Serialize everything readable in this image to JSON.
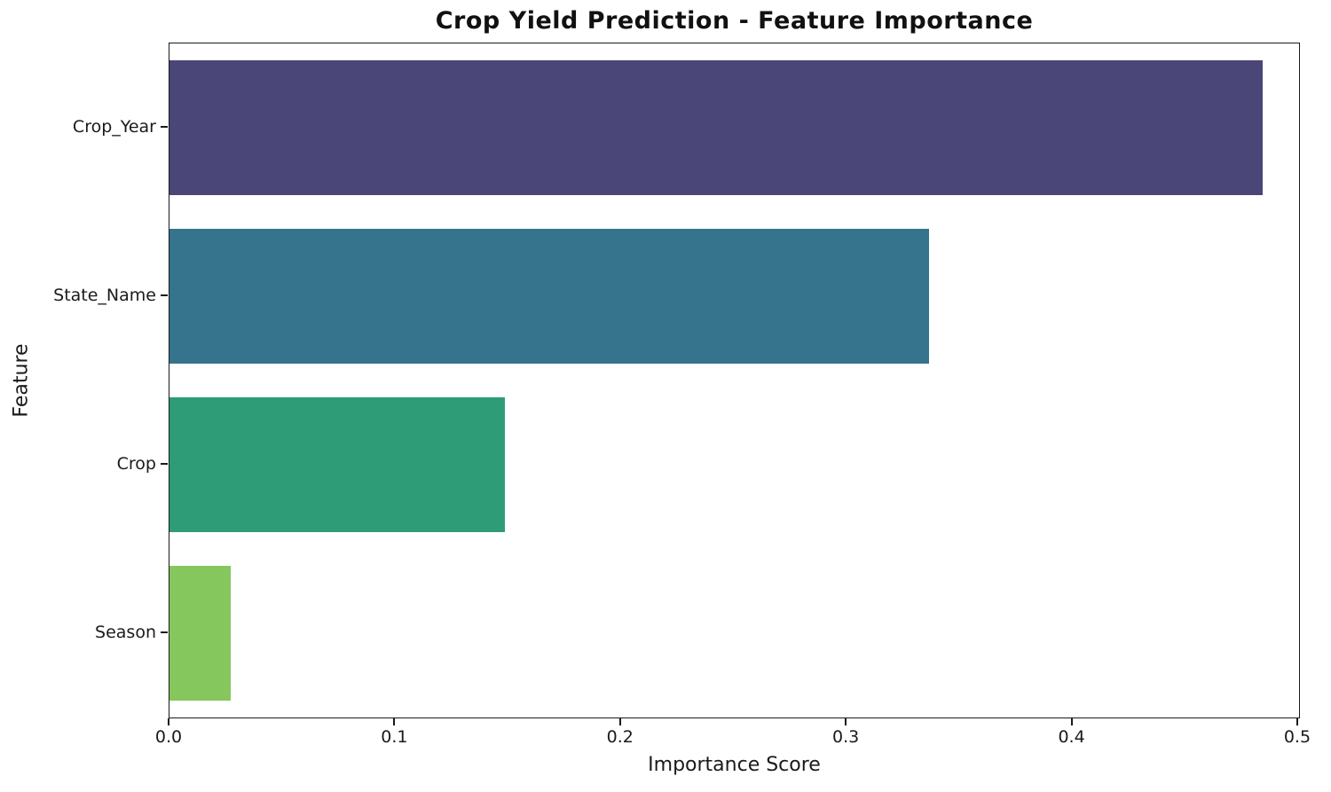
{
  "chart_data": {
    "type": "bar",
    "orientation": "horizontal",
    "title": "Crop Yield Prediction - Feature Importance",
    "xlabel": "Importance Score",
    "ylabel": "Feature",
    "categories": [
      "Crop_Year",
      "State_Name",
      "Crop",
      "Season"
    ],
    "values": [
      0.485,
      0.337,
      0.149,
      0.027
    ],
    "bar_colors": [
      "#4a4678",
      "#35748c",
      "#2e9c77",
      "#85c75c"
    ],
    "xticks": [
      0.0,
      0.1,
      0.2,
      0.3,
      0.4,
      0.5
    ],
    "xtick_labels": [
      "0.0",
      "0.1",
      "0.2",
      "0.3",
      "0.4",
      "0.5"
    ],
    "xlim": [
      0,
      0.5012
    ],
    "grid": false,
    "legend": null,
    "bar_fraction": 0.8,
    "axis_color": "#1a1a1a",
    "background_color": "#ffffff"
  }
}
